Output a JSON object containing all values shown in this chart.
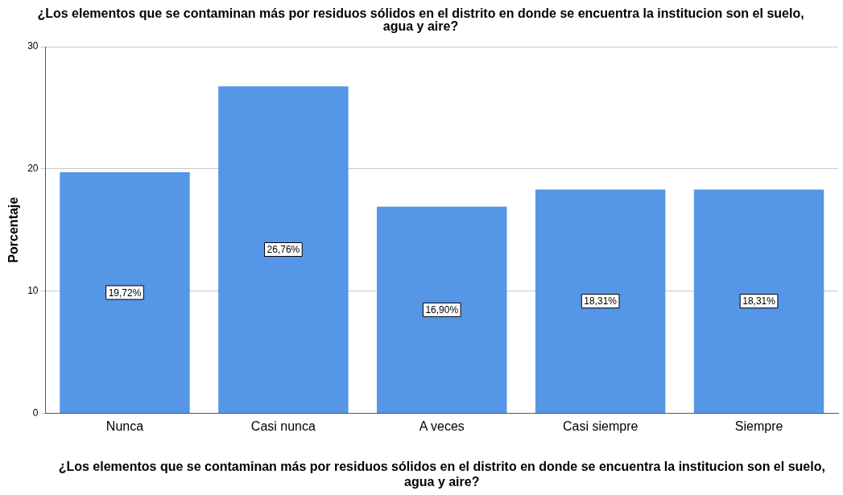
{
  "chart_data": {
    "type": "bar",
    "title": "¿Los elementos que se contaminan más por residuos sólidos en el distrito en donde se encuentra la institucion son el suelo, agua y aire?",
    "xlabel": "¿Los elementos que se contaminan más por residuos sólidos en el distrito en donde se encuentra la institucion son el suelo, agua y aire?",
    "ylabel": "Porcentaje",
    "categories": [
      "Nunca",
      "Casi nunca",
      "A veces",
      "Casi siempre",
      "Siempre"
    ],
    "values": [
      19.72,
      26.76,
      16.9,
      18.31,
      18.31
    ],
    "value_labels": [
      "19,72%",
      "26,76%",
      "16,90%",
      "18,31%",
      "18,31%"
    ],
    "color": "#5596e6",
    "ylim": [
      0,
      30
    ],
    "yticks": [
      0,
      10,
      20,
      30
    ],
    "grid": "y",
    "legend": false
  }
}
